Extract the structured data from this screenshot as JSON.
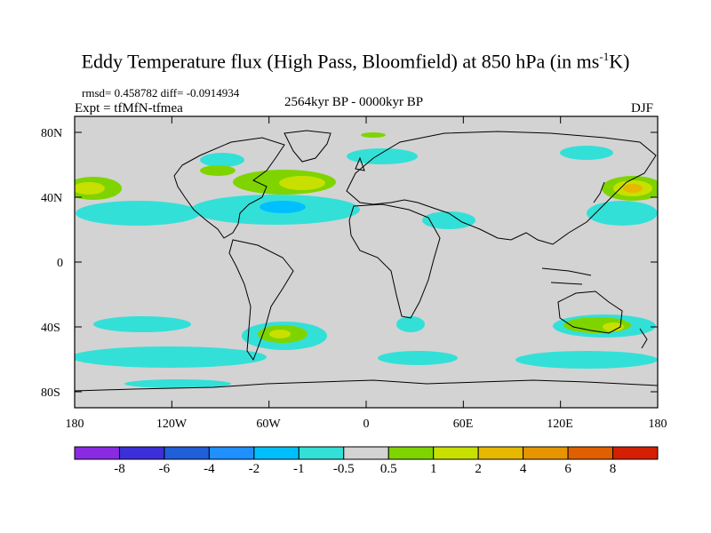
{
  "title": {
    "prefix": "Eddy Temperature flux (High Pass, Bloomfield) at 850 hPa (in ms",
    "superscript": "-1",
    "suffix": "K)"
  },
  "stats": "rmsd= 0.458782 diff= -0.0914934",
  "experiment": "Expt = tfMfN-tfmea",
  "period": "2564kyr BP - 0000kyr BP",
  "season": "DJF",
  "map": {
    "projection": "cylindrical equidistant",
    "lon_range": [
      -180,
      180
    ],
    "lat_range": [
      -90,
      90
    ],
    "background_color": "#d3d3d3",
    "y_tick_labels": [
      "80N",
      "40N",
      "0",
      "40S",
      "80S"
    ],
    "x_tick_labels": [
      "180",
      "120W",
      "60W",
      "0",
      "60E",
      "120E",
      "180"
    ],
    "field_regions": [
      {
        "name": "north-pacific-east",
        "lon": -165,
        "lat": 46,
        "level": "1 to 2"
      },
      {
        "name": "north-atlantic-west",
        "lon": -50,
        "lat": 42,
        "level": "1 to 2"
      },
      {
        "name": "north-atlantic-central",
        "lon": -30,
        "lat": 48,
        "level": "1 to 2"
      },
      {
        "name": "northwest-pacific",
        "lon": 155,
        "lat": 44,
        "level": "2 to 4"
      },
      {
        "name": "subtropical-atlantic",
        "lon": -50,
        "lat": 32,
        "level": "-2 to -1"
      },
      {
        "name": "south-atlantic",
        "lon": -55,
        "lat": -42,
        "level": "1 to 2"
      },
      {
        "name": "australia-south",
        "lon": 140,
        "lat": -37,
        "level": "1 to 2"
      },
      {
        "name": "southern-ocean-band",
        "lon": -120,
        "lat": -55,
        "level": "-1 to -0.5"
      }
    ]
  },
  "colorbar": {
    "labels": [
      "-8",
      "-6",
      "-4",
      "-2",
      "-1",
      "-0.5",
      "0.5",
      "1",
      "2",
      "4",
      "6",
      "8"
    ],
    "colors": [
      "#8a2be2",
      "#3b2fd9",
      "#1f5fd8",
      "#1e90ff",
      "#00bfff",
      "#33e0d8",
      "#d3d3d3",
      "#7fd400",
      "#c8e000",
      "#e6b800",
      "#e69500",
      "#e06000",
      "#d42000"
    ]
  }
}
